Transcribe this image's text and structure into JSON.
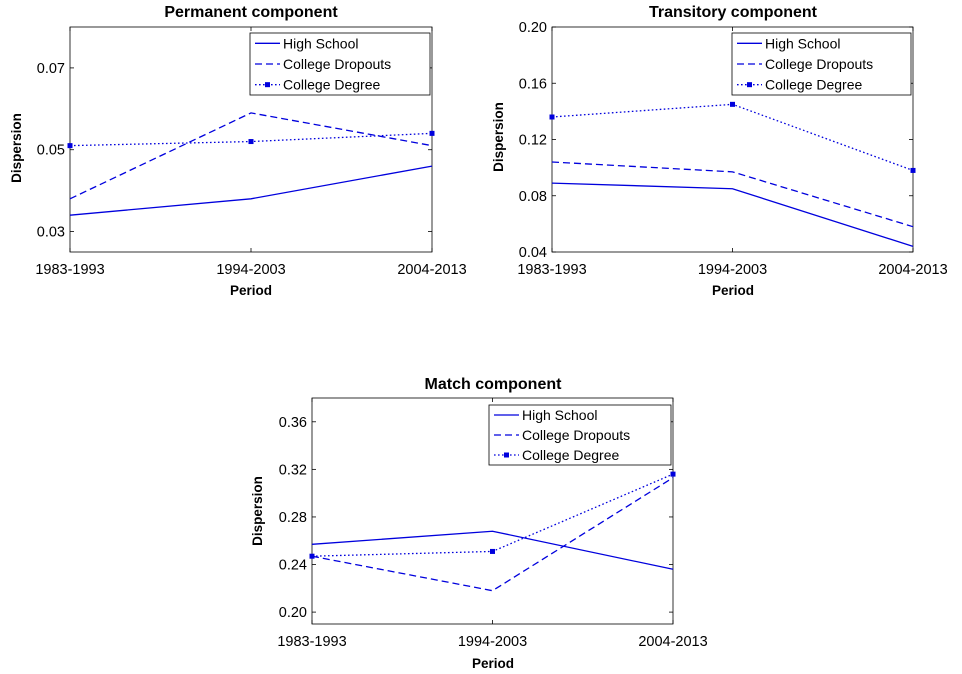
{
  "colors": {
    "series": "#0000dd",
    "axis": "#000000",
    "background": "#ffffff"
  },
  "chart_data": [
    {
      "type": "line",
      "title": "Permanent component",
      "xlabel": "Period",
      "ylabel": "Dispersion",
      "categories": [
        "1983-1993",
        "1994-2003",
        "2004-2013"
      ],
      "ylim": [
        0.025,
        0.08
      ],
      "yticks": [
        0.03,
        0.05,
        0.07
      ],
      "ytick_labels": [
        "0.03",
        "0.05",
        "0.07"
      ],
      "legend": "top-right",
      "grid": false,
      "series": [
        {
          "name": "High School",
          "style": "solid",
          "values": [
            0.034,
            0.038,
            0.046
          ]
        },
        {
          "name": "College Dropouts",
          "style": "dashed",
          "values": [
            0.038,
            0.059,
            0.051
          ]
        },
        {
          "name": "College Degree",
          "style": "dotted-square",
          "values": [
            0.051,
            0.052,
            0.054
          ]
        }
      ]
    },
    {
      "type": "line",
      "title": "Transitory component",
      "xlabel": "Period",
      "ylabel": "Dispersion",
      "categories": [
        "1983-1993",
        "1994-2003",
        "2004-2013"
      ],
      "ylim": [
        0.04,
        0.2
      ],
      "yticks": [
        0.04,
        0.08,
        0.12,
        0.16,
        0.2
      ],
      "ytick_labels": [
        "0.04",
        "0.08",
        "0.12",
        "0.16",
        "0.20"
      ],
      "legend": "top-right",
      "grid": false,
      "series": [
        {
          "name": "High School",
          "style": "solid",
          "values": [
            0.089,
            0.085,
            0.044
          ]
        },
        {
          "name": "College Dropouts",
          "style": "dashed",
          "values": [
            0.104,
            0.097,
            0.058
          ]
        },
        {
          "name": "College Degree",
          "style": "dotted-square",
          "values": [
            0.136,
            0.145,
            0.098
          ]
        }
      ]
    },
    {
      "type": "line",
      "title": "Match component",
      "xlabel": "Period",
      "ylabel": "Dispersion",
      "categories": [
        "1983-1993",
        "1994-2003",
        "2004-2013"
      ],
      "ylim": [
        0.19,
        0.38
      ],
      "yticks": [
        0.2,
        0.24,
        0.28,
        0.32,
        0.36
      ],
      "ytick_labels": [
        "0.20",
        "0.24",
        "0.28",
        "0.32",
        "0.36"
      ],
      "legend": "top-right",
      "grid": false,
      "series": [
        {
          "name": "High School",
          "style": "solid",
          "values": [
            0.257,
            0.268,
            0.236
          ]
        },
        {
          "name": "College Dropouts",
          "style": "dashed",
          "values": [
            0.247,
            0.218,
            0.313
          ]
        },
        {
          "name": "College Degree",
          "style": "dotted-square",
          "values": [
            0.247,
            0.251,
            0.316
          ]
        }
      ]
    }
  ]
}
